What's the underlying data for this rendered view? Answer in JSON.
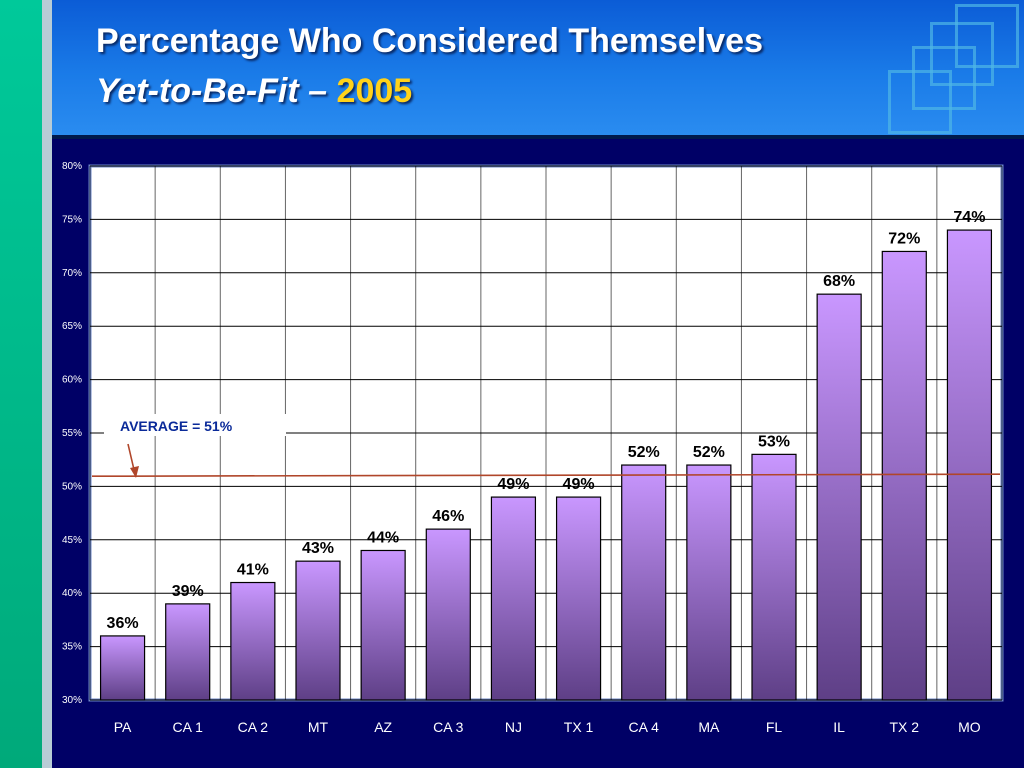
{
  "slide": {
    "title_line1": "Percentage Who Considered Themselves",
    "title_line2_italic": "Yet-to-Be-Fit",
    "title_dash": " – ",
    "title_year": "2005"
  },
  "colors": {
    "header": "#1a7be8",
    "plot_background": "#ffffff",
    "bar_top": "#c997ff",
    "bar_bottom": "#5e3f86",
    "average_line": "#b0462a",
    "label_text": "#000000",
    "year_highlight": "#ffd21a"
  },
  "chart_data": {
    "type": "bar",
    "categories": [
      "PA",
      "CA 1",
      "CA 2",
      "MT",
      "AZ",
      "CA 3",
      "NJ",
      "TX 1",
      "CA 4",
      "MA",
      "FL",
      "IL",
      "TX 2",
      "MO"
    ],
    "values": [
      36,
      39,
      41,
      43,
      44,
      46,
      49,
      49,
      52,
      52,
      53,
      68,
      72,
      74
    ],
    "data_labels": [
      "36%",
      "39%",
      "41%",
      "43%",
      "44%",
      "46%",
      "49%",
      "49%",
      "52%",
      "52%",
      "53%",
      "68%",
      "72%",
      "74%"
    ],
    "ylim": [
      30,
      80
    ],
    "yticks": [
      "30%",
      "35%",
      "40%",
      "45%",
      "50%",
      "55%",
      "60%",
      "65%",
      "70%",
      "75%",
      "80%"
    ],
    "grid": true,
    "average": {
      "value": 51,
      "label": "AVERAGE = 51%"
    },
    "xlabel": "",
    "ylabel": ""
  }
}
